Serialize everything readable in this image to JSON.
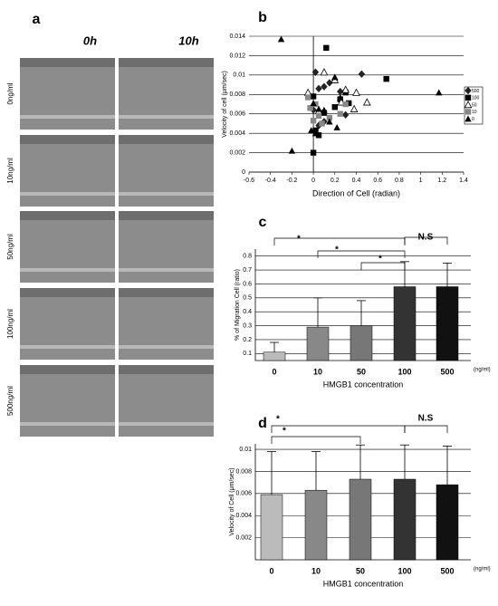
{
  "image_panel": {
    "letter": "a",
    "columns": [
      "0h",
      "10h"
    ],
    "rows": [
      "0ng/ml",
      "10ng/ml",
      "50ng/ml",
      "100ng/ml",
      "500ng/ml"
    ]
  },
  "chart_data": [
    {
      "type": "scatter",
      "panel": "b",
      "x_label": "Direction of Cell (radian)",
      "y_label": "Velocity of cell (μm/sec)",
      "xlim": [
        -0.6,
        1.4
      ],
      "xticks": [
        -0.6,
        -0.4,
        -0.2,
        0,
        0.2,
        0.4,
        0.6,
        0.8,
        1,
        1.2,
        1.4
      ],
      "ylim": [
        0,
        0.014
      ],
      "yticks": [
        0,
        0.002,
        0.004,
        0.006,
        0.008,
        0.01,
        0.012,
        0.014
      ],
      "grid": true,
      "legend": "right",
      "series": [
        {
          "name": "500",
          "color": "#222222",
          "marker": "diamond",
          "x": [
            0.02,
            0.05,
            0.1,
            0.15,
            0.2,
            0.25,
            0.45,
            0.0,
            0.05,
            0.3,
            0.1
          ],
          "values": [
            0.0103,
            0.0086,
            0.0088,
            0.0092,
            0.0095,
            0.0083,
            0.0101,
            0.0064,
            0.0048,
            0.0059,
            0.0052
          ]
        },
        {
          "name": "100",
          "color": "#000000",
          "marker": "square",
          "x": [
            0.12,
            0.68,
            0.3,
            0.25,
            0.2,
            0.1,
            0.02,
            0.0,
            0.33,
            0.05,
            0.0
          ],
          "values": [
            0.0128,
            0.0096,
            0.0082,
            0.0075,
            0.0067,
            0.0061,
            0.0043,
            0.0078,
            0.0071,
            0.0038,
            0.002
          ]
        },
        {
          "name": "50",
          "color": "#000000",
          "marker": "open-triangle",
          "x": [
            -0.05,
            0.1,
            0.2,
            0.3,
            0.4,
            0.5,
            0.38,
            0.26,
            0.05
          ],
          "values": [
            0.0082,
            0.0103,
            0.0095,
            0.0085,
            0.0082,
            0.0072,
            0.0065,
            0.0072,
            0.0063
          ]
        },
        {
          "name": "10",
          "color": "#888888",
          "marker": "square",
          "x": [
            -0.05,
            0.02,
            0.05,
            0.15,
            0.25,
            0.08,
            -0.03,
            0.3,
            0.0
          ],
          "values": [
            0.0077,
            0.007,
            0.0058,
            0.0056,
            0.006,
            0.005,
            0.0066,
            0.007,
            0.0053
          ]
        },
        {
          "name": "0",
          "color": "#000000",
          "marker": "triangle",
          "x": [
            -0.3,
            1.17,
            -0.2,
            0.2,
            0.0,
            0.05,
            0.1,
            0.15,
            0.22,
            0.02,
            -0.02,
            0.25
          ],
          "values": [
            0.0137,
            0.0082,
            0.0022,
            0.0098,
            0.0071,
            0.0065,
            0.0064,
            0.0052,
            0.0046,
            0.004,
            0.0043,
            0.0077
          ]
        }
      ]
    },
    {
      "type": "bar",
      "panel": "c",
      "x_label": "HMGB1 concentration",
      "x_unit": "(ng/ml)",
      "y_label": "% of Migration Cell (ratio)",
      "categories": [
        "0",
        "10",
        "50",
        "100",
        "500"
      ],
      "values": [
        0.11,
        0.29,
        0.3,
        0.58,
        0.58
      ],
      "errors": [
        0.07,
        0.21,
        0.18,
        0.18,
        0.17
      ],
      "colors": [
        "#bbbbbb",
        "#888888",
        "#777777",
        "#333333",
        "#111111"
      ],
      "ylim": [
        0.05,
        0.85
      ],
      "yticks": [
        0.1,
        0.2,
        0.3,
        0.4,
        0.5,
        0.6,
        0.7,
        0.8
      ],
      "grid": true,
      "annotations": [
        "*",
        "*",
        "*",
        "N.S"
      ]
    },
    {
      "type": "bar",
      "panel": "d",
      "x_label": "HMGB1 concentration",
      "x_unit": "(ng/ml)",
      "y_label": "Velocity of Cell (μm/sec)",
      "categories": [
        "0",
        "10",
        "50",
        "100",
        "500"
      ],
      "values": [
        0.0059,
        0.0063,
        0.0073,
        0.0073,
        0.0068
      ],
      "errors": [
        0.0039,
        0.0035,
        0.0031,
        0.0031,
        0.0035
      ],
      "colors": [
        "#bbbbbb",
        "#888888",
        "#777777",
        "#333333",
        "#111111"
      ],
      "ylim": [
        0,
        0.0105
      ],
      "yticks": [
        0.002,
        0.004,
        0.006,
        0.008,
        0.01
      ],
      "grid": true,
      "annotations": [
        "*",
        "*",
        "N.S"
      ]
    }
  ]
}
